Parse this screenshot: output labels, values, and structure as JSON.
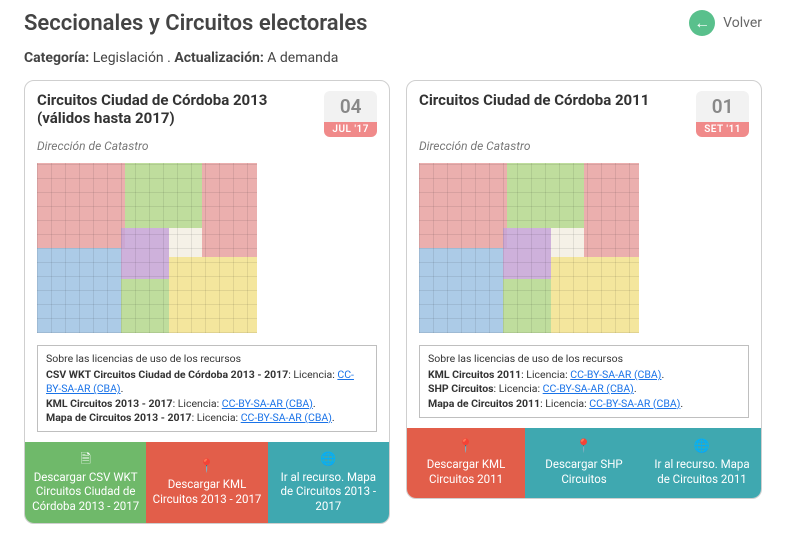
{
  "header": {
    "title": "Seccionales y Circuitos electorales",
    "back_label": "Volver"
  },
  "meta": {
    "categoria_label": "Categoría:",
    "categoria_value": "Legislación",
    "actualizacion_label": "Actualización:",
    "actualizacion_value": "A demanda"
  },
  "cards": [
    {
      "title": "Circuitos Ciudad de Córdoba 2013 (válidos hasta 2017)",
      "subtitle": "Dirección de Catastro",
      "date_day": "04",
      "date_month": "JUL '17",
      "license_title": "Sobre las licencias de uso de los recursos",
      "license_lines": [
        {
          "name": "CSV WKT Circuitos Ciudad de Córdoba 2013 - 2017",
          "lic_label": "Licencia:",
          "lic_link": "CC-BY-SA-AR (CBA)"
        },
        {
          "name": "KML Circuitos 2013 - 2017",
          "lic_label": "Licencia:",
          "lic_link": "CC-BY-SA-AR (CBA)"
        },
        {
          "name": "Mapa de Circuitos 2013 - 2017",
          "lic_label": "Licencia:",
          "lic_link": "CC-BY-SA-AR (CBA)"
        }
      ],
      "buttons": [
        {
          "color": "green",
          "icon": "file",
          "label": "Descargar CSV WKT Circuitos Ciudad de Córdoba 2013 - 2017"
        },
        {
          "color": "red",
          "icon": "pin",
          "label": "Descargar KML Circuitos 2013 - 2017"
        },
        {
          "color": "teal",
          "icon": "globe",
          "label": "Ir al recurso. Mapa de Circuitos 2013 - 2017"
        }
      ]
    },
    {
      "title": "Circuitos Ciudad de Córdoba 2011",
      "subtitle": "Dirección de Catastro",
      "date_day": "01",
      "date_month": "SET '11",
      "license_title": "Sobre las licencias de uso de los recursos",
      "license_lines": [
        {
          "name": "KML Circuitos 2011",
          "lic_label": "Licencia:",
          "lic_link": "CC-BY-SA-AR (CBA)"
        },
        {
          "name": "SHP Circuitos",
          "lic_label": "Licencia:",
          "lic_link": "CC-BY-SA-AR (CBA)"
        },
        {
          "name": "Mapa de Circuitos 2011",
          "lic_label": "Licencia:",
          "lic_link": "CC-BY-SA-AR (CBA)"
        }
      ],
      "buttons": [
        {
          "color": "red",
          "icon": "pin",
          "label": "Descargar KML Circuitos 2011"
        },
        {
          "color": "teal",
          "icon": "pin",
          "label": "Descargar SHP Circuitos"
        },
        {
          "color": "teal",
          "icon": "globe",
          "label": "Ir al recurso. Mapa de Circuitos 2011"
        }
      ]
    }
  ],
  "icons": {
    "file": "🗎",
    "pin": "📍",
    "globe": "🌐",
    "back": "←"
  }
}
